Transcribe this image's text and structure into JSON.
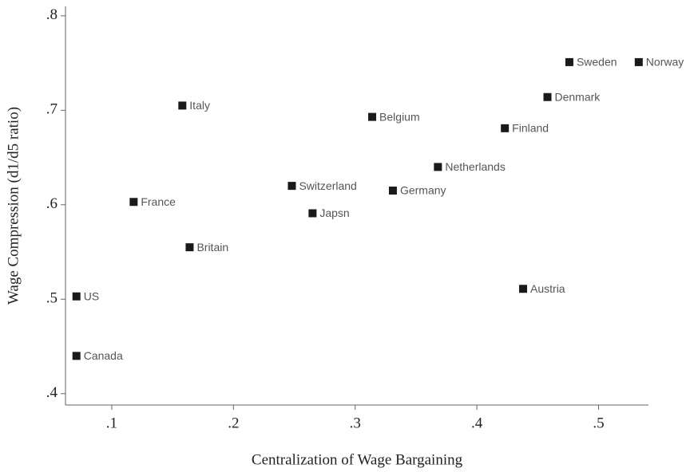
{
  "chart_data": {
    "type": "scatter",
    "x_label": "Centralization of Wage Bargaining",
    "y_label": "Wage Compression (d1/d5 ratio)",
    "labels": [
      "US",
      "Canada",
      "France",
      "Italy",
      "Britain",
      "Switzerland",
      "Japsn",
      "Belgium",
      "Germany",
      "Netherlands",
      "Finland",
      "Austria",
      "Denmark",
      "Sweden",
      "Norway"
    ],
    "x": [
      0.071,
      0.071,
      0.118,
      0.158,
      0.164,
      0.248,
      0.265,
      0.314,
      0.331,
      0.368,
      0.423,
      0.438,
      0.458,
      0.476,
      0.533
    ],
    "values": [
      0.503,
      0.44,
      0.603,
      0.705,
      0.555,
      0.62,
      0.591,
      0.693,
      0.615,
      0.64,
      0.681,
      0.511,
      0.714,
      0.751,
      0.751
    ],
    "color": "#1a1a1a",
    "xlim": [
      0.062,
      0.541
    ],
    "ylim": [
      0.388,
      0.81
    ],
    "xticks": [
      {
        "value": 0.1,
        "label": ".1"
      },
      {
        "value": 0.2,
        "label": ".2"
      },
      {
        "value": 0.3,
        "label": ".3"
      },
      {
        "value": 0.4,
        "label": ".4"
      },
      {
        "value": 0.5,
        "label": ".5"
      }
    ],
    "yticks": [
      {
        "value": 0.4,
        "label": ".4"
      },
      {
        "value": 0.5,
        "label": ".5"
      },
      {
        "value": 0.6,
        "label": ".6"
      },
      {
        "value": 0.7,
        "label": ".7"
      },
      {
        "value": 0.8,
        "label": ".8"
      }
    ]
  }
}
